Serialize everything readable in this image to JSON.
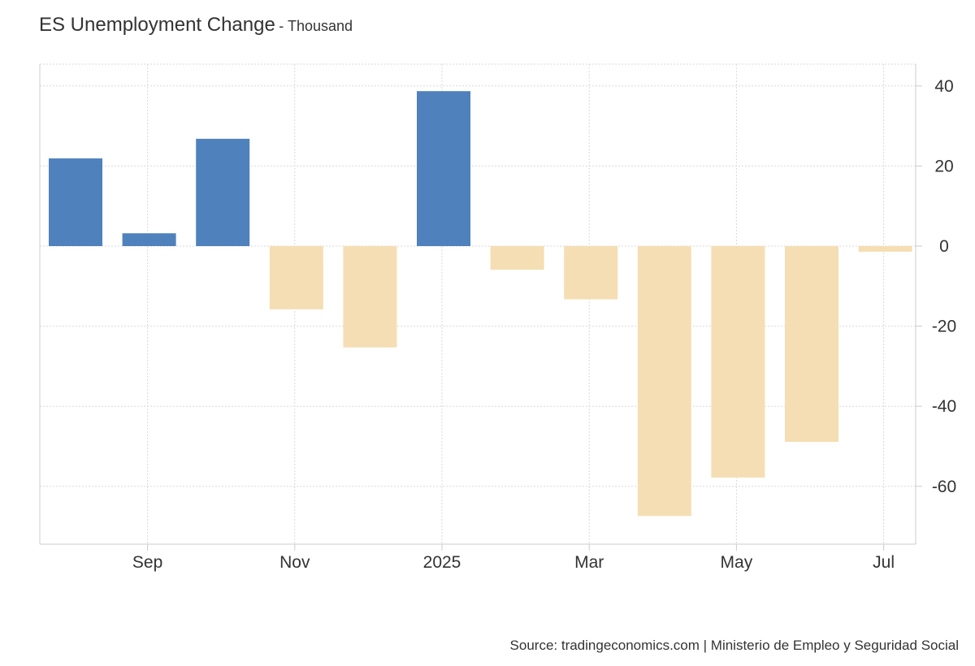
{
  "header": {
    "title": "ES Unemployment Change",
    "subtitle": "- Thousand"
  },
  "footer": {
    "source": "Source: tradingeconomics.com | Ministerio de Empleo y Seguridad Social"
  },
  "colors": {
    "positive": "#4f81bd",
    "negative": "#f5deb3",
    "grid": "#d9d9d9",
    "axis": "#cccccc",
    "text": "#333333"
  },
  "chart_data": {
    "type": "bar",
    "title": "ES Unemployment Change",
    "subtitle": "- Thousand",
    "categories": [
      "Aug 2024",
      "Sep 2024",
      "Oct 2024",
      "Nov 2024",
      "Dec 2024",
      "Jan 2025",
      "Feb 2025",
      "Mar 2025",
      "Apr 2025",
      "May 2025",
      "Jun 2025",
      "Jul 2025"
    ],
    "values": [
      21.9,
      3.2,
      26.8,
      -15.8,
      -25.3,
      38.7,
      -5.9,
      -13.3,
      -67.4,
      -57.8,
      -48.9,
      -1.4
    ],
    "x_tick_labels": [
      "Sep",
      "Nov",
      "2025",
      "Mar",
      "May",
      "Jul"
    ],
    "y_ticks": [
      40,
      20,
      0,
      -20,
      -40,
      -60
    ],
    "ylim": [
      -75,
      45
    ],
    "y_axis_position": "right",
    "grid": true,
    "legend": "none"
  }
}
